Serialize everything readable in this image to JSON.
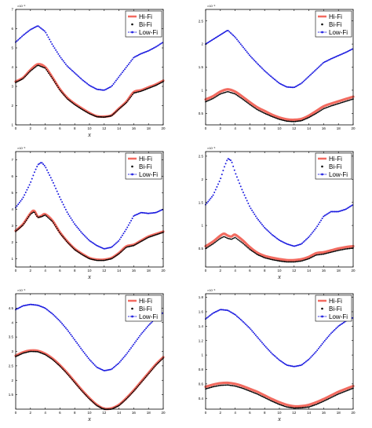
{
  "legend": [
    "Hi-Fi",
    "Bi-Fi",
    "Low-Fi"
  ],
  "colors": {
    "hifi": "#f26b60",
    "bifi": "#000000",
    "lowfi": "#1a1adf"
  },
  "chart_data": [
    {
      "type": "line",
      "exponent_label": "×10⁻³",
      "xlabel": "x",
      "xlim": [
        0,
        20
      ],
      "ylim": [
        1,
        7
      ],
      "xticks": [
        "0",
        "2",
        "4",
        "6",
        "8",
        "10",
        "12",
        "14",
        "16",
        "18",
        "20"
      ],
      "yticks": [
        "1",
        "2",
        "3",
        "4",
        "5",
        "6",
        "7"
      ],
      "x": [
        0,
        1,
        2,
        3,
        4,
        5,
        6,
        7,
        8,
        9,
        10,
        11,
        12,
        13,
        14,
        15,
        16,
        17,
        18,
        19,
        20
      ],
      "series": [
        {
          "name": "Hi-Fi",
          "values": [
            3.25,
            3.45,
            3.85,
            4.15,
            4.0,
            3.45,
            2.85,
            2.4,
            2.1,
            1.85,
            1.62,
            1.45,
            1.43,
            1.5,
            1.85,
            2.2,
            2.7,
            2.8,
            2.95,
            3.1,
            3.3
          ]
        },
        {
          "name": "Bi-Fi",
          "values": [
            3.2,
            3.4,
            3.8,
            4.1,
            3.95,
            3.4,
            2.8,
            2.35,
            2.05,
            1.8,
            1.58,
            1.42,
            1.4,
            1.47,
            1.82,
            2.15,
            2.65,
            2.75,
            2.9,
            3.05,
            3.25
          ]
        },
        {
          "name": "Low-Fi",
          "values": [
            5.3,
            5.65,
            5.95,
            6.15,
            5.85,
            5.15,
            4.55,
            4.05,
            3.7,
            3.35,
            3.05,
            2.85,
            2.8,
            3.0,
            3.5,
            4.0,
            4.5,
            4.7,
            4.85,
            5.05,
            5.3
          ]
        }
      ]
    },
    {
      "type": "line",
      "exponent_label": "×10⁻³",
      "xlabel": "",
      "xlim": [
        0,
        20
      ],
      "ylim": [
        0.25,
        2.75
      ],
      "xticks": [
        "0",
        "2",
        "4",
        "6",
        "8",
        "10",
        "12",
        "14",
        "16",
        "18",
        "20"
      ],
      "yticks": [
        "0.5",
        "1",
        "1.5",
        "2",
        "2.5"
      ],
      "x": [
        0,
        1,
        2,
        3,
        4,
        5,
        6,
        7,
        8,
        9,
        10,
        11,
        12,
        13,
        14,
        15,
        16,
        17,
        18,
        19,
        20
      ],
      "series": [
        {
          "name": "Hi-Fi",
          "values": [
            0.8,
            0.87,
            0.97,
            1.02,
            0.97,
            0.86,
            0.74,
            0.63,
            0.55,
            0.47,
            0.41,
            0.37,
            0.36,
            0.38,
            0.45,
            0.55,
            0.65,
            0.71,
            0.76,
            0.81,
            0.86
          ]
        },
        {
          "name": "Bi-Fi",
          "values": [
            0.75,
            0.82,
            0.92,
            0.97,
            0.92,
            0.81,
            0.69,
            0.58,
            0.5,
            0.43,
            0.37,
            0.33,
            0.32,
            0.34,
            0.41,
            0.5,
            0.6,
            0.66,
            0.71,
            0.76,
            0.81
          ]
        },
        {
          "name": "Low-Fi",
          "values": [
            2.0,
            2.1,
            2.2,
            2.3,
            2.15,
            1.95,
            1.75,
            1.58,
            1.42,
            1.28,
            1.15,
            1.07,
            1.06,
            1.15,
            1.3,
            1.45,
            1.6,
            1.68,
            1.75,
            1.82,
            1.9
          ]
        }
      ]
    },
    {
      "type": "line",
      "exponent_label": "×10⁻³",
      "xlabel": "x",
      "xlim": [
        0,
        20
      ],
      "ylim": [
        0.5,
        7.5
      ],
      "xticks": [
        "0",
        "2",
        "4",
        "6",
        "8",
        "10",
        "12",
        "14",
        "16",
        "18",
        "20"
      ],
      "yticks": [
        "1",
        "2",
        "3",
        "4",
        "5",
        "6",
        "7"
      ],
      "x": [
        0,
        1,
        2,
        2.5,
        3,
        3.5,
        4,
        5,
        6,
        7,
        8,
        9,
        10,
        11,
        12,
        13,
        14,
        15,
        16,
        17,
        18,
        19,
        20
      ],
      "series": [
        {
          "name": "Hi-Fi",
          "values": [
            2.7,
            3.1,
            3.75,
            3.9,
            3.55,
            3.6,
            3.7,
            3.3,
            2.6,
            2.05,
            1.6,
            1.3,
            1.05,
            0.95,
            0.95,
            1.05,
            1.35,
            1.75,
            1.85,
            2.1,
            2.35,
            2.5,
            2.65
          ]
        },
        {
          "name": "Bi-Fi",
          "values": [
            2.65,
            3.05,
            3.7,
            3.85,
            3.5,
            3.55,
            3.65,
            3.25,
            2.55,
            2.0,
            1.55,
            1.25,
            1.0,
            0.9,
            0.9,
            1.0,
            1.3,
            1.7,
            1.8,
            2.05,
            2.3,
            2.45,
            2.6
          ]
        },
        {
          "name": "Low-Fi",
          "values": [
            4.1,
            4.7,
            5.6,
            6.2,
            6.7,
            6.85,
            6.6,
            5.7,
            4.7,
            3.8,
            3.1,
            2.55,
            2.1,
            1.8,
            1.6,
            1.7,
            2.1,
            2.8,
            3.6,
            3.8,
            3.75,
            3.8,
            4.0
          ]
        }
      ]
    },
    {
      "type": "line",
      "exponent_label": "×10⁻³",
      "xlabel": "x",
      "xlim": [
        0,
        20
      ],
      "ylim": [
        0.1,
        2.6
      ],
      "xticks": [
        "0",
        "2",
        "4",
        "6",
        "8",
        "10",
        "12",
        "14",
        "16",
        "18",
        "20"
      ],
      "yticks": [
        "0.5",
        "1",
        "1.5",
        "2",
        "2.5"
      ],
      "x": [
        0,
        1,
        2,
        2.5,
        3,
        3.5,
        4,
        5,
        6,
        7,
        8,
        9,
        10,
        11,
        12,
        13,
        14,
        15,
        16,
        17,
        18,
        19,
        20
      ],
      "series": [
        {
          "name": "Hi-Fi",
          "values": [
            0.55,
            0.65,
            0.78,
            0.82,
            0.78,
            0.76,
            0.8,
            0.68,
            0.53,
            0.41,
            0.34,
            0.3,
            0.27,
            0.25,
            0.25,
            0.27,
            0.32,
            0.4,
            0.42,
            0.46,
            0.5,
            0.53,
            0.55
          ]
        },
        {
          "name": "Bi-Fi",
          "values": [
            0.5,
            0.6,
            0.72,
            0.76,
            0.72,
            0.7,
            0.74,
            0.62,
            0.48,
            0.37,
            0.3,
            0.26,
            0.23,
            0.21,
            0.21,
            0.23,
            0.28,
            0.36,
            0.38,
            0.42,
            0.46,
            0.49,
            0.51
          ]
        },
        {
          "name": "Low-Fi",
          "values": [
            1.45,
            1.65,
            2.0,
            2.25,
            2.45,
            2.4,
            2.15,
            1.75,
            1.4,
            1.15,
            0.95,
            0.8,
            0.68,
            0.6,
            0.55,
            0.6,
            0.75,
            0.95,
            1.2,
            1.3,
            1.3,
            1.35,
            1.45
          ]
        }
      ]
    },
    {
      "type": "line",
      "exponent_label": "×10⁻³",
      "xlabel": "x",
      "xlim": [
        0,
        20
      ],
      "ylim": [
        1,
        5
      ],
      "xticks": [
        "0",
        "2",
        "4",
        "6",
        "8",
        "10",
        "12",
        "14",
        "16",
        "18",
        "20"
      ],
      "yticks": [
        "1.5",
        "2",
        "2.5",
        "3",
        "3.5",
        "4",
        "4.5"
      ],
      "x": [
        0,
        1,
        2,
        3,
        4,
        5,
        6,
        7,
        8,
        9,
        10,
        11,
        12,
        13,
        14,
        15,
        16,
        17,
        18,
        19,
        20
      ],
      "series": [
        {
          "name": "Hi-Fi",
          "values": [
            2.85,
            2.97,
            3.03,
            3.02,
            2.92,
            2.75,
            2.52,
            2.25,
            1.95,
            1.65,
            1.38,
            1.15,
            1.02,
            1.03,
            1.15,
            1.38,
            1.65,
            1.95,
            2.25,
            2.55,
            2.8
          ]
        },
        {
          "name": "Bi-Fi",
          "values": [
            2.82,
            2.94,
            3.0,
            2.99,
            2.89,
            2.72,
            2.49,
            2.22,
            1.92,
            1.62,
            1.35,
            1.12,
            0.99,
            1.0,
            1.12,
            1.35,
            1.62,
            1.92,
            2.22,
            2.52,
            2.77
          ]
        },
        {
          "name": "Low-Fi",
          "values": [
            4.45,
            4.58,
            4.63,
            4.6,
            4.5,
            4.3,
            4.05,
            3.75,
            3.4,
            3.05,
            2.72,
            2.45,
            2.33,
            2.38,
            2.6,
            2.9,
            3.25,
            3.6,
            3.9,
            4.15,
            4.35
          ]
        }
      ]
    },
    {
      "type": "line",
      "exponent_label": "×10⁻³",
      "xlabel": "x",
      "xlim": [
        0,
        20
      ],
      "ylim": [
        0.25,
        1.85
      ],
      "xticks": [
        "0",
        "2",
        "4",
        "6",
        "8",
        "10",
        "12",
        "14",
        "16",
        "18",
        "20"
      ],
      "yticks": [
        "0.4",
        "0.6",
        "0.8",
        "1",
        "1.2",
        "1.4",
        "1.6",
        "1.8"
      ],
      "x": [
        0,
        1,
        2,
        3,
        4,
        5,
        6,
        7,
        8,
        9,
        10,
        11,
        12,
        13,
        14,
        15,
        16,
        17,
        18,
        19,
        20
      ],
      "series": [
        {
          "name": "Hi-Fi",
          "values": [
            0.56,
            0.59,
            0.61,
            0.615,
            0.6,
            0.57,
            0.53,
            0.49,
            0.44,
            0.39,
            0.345,
            0.31,
            0.29,
            0.292,
            0.31,
            0.345,
            0.39,
            0.44,
            0.49,
            0.53,
            0.57
          ]
        },
        {
          "name": "Bi-Fi",
          "values": [
            0.53,
            0.56,
            0.58,
            0.585,
            0.57,
            0.54,
            0.5,
            0.46,
            0.41,
            0.36,
            0.315,
            0.28,
            0.265,
            0.268,
            0.28,
            0.315,
            0.36,
            0.41,
            0.46,
            0.5,
            0.54
          ]
        },
        {
          "name": "Low-Fi",
          "values": [
            1.5,
            1.58,
            1.63,
            1.62,
            1.56,
            1.47,
            1.37,
            1.25,
            1.13,
            1.02,
            0.93,
            0.86,
            0.84,
            0.86,
            0.94,
            1.05,
            1.18,
            1.3,
            1.4,
            1.47,
            1.52
          ]
        }
      ]
    }
  ]
}
